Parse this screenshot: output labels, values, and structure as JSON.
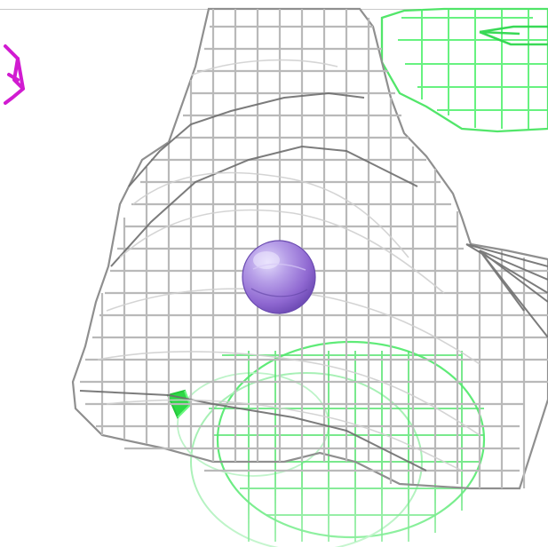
{
  "scene": {
    "background_color": "#ffffff",
    "mesh_colors": {
      "gray_map": "#b9b9b9",
      "gray_map_dark": "#6e6e6e",
      "green_map": "#3fe35a",
      "green_map_light": "#a7f0b5",
      "magenta_fragment": "#d11bd1"
    },
    "atom": {
      "color": "#9b7bd6",
      "highlight_color": "#c7b7ef",
      "shadow_color": "#6a4bb0"
    },
    "icons": [
      "molecular-mesh-icon",
      "atom-sphere-icon"
    ]
  }
}
